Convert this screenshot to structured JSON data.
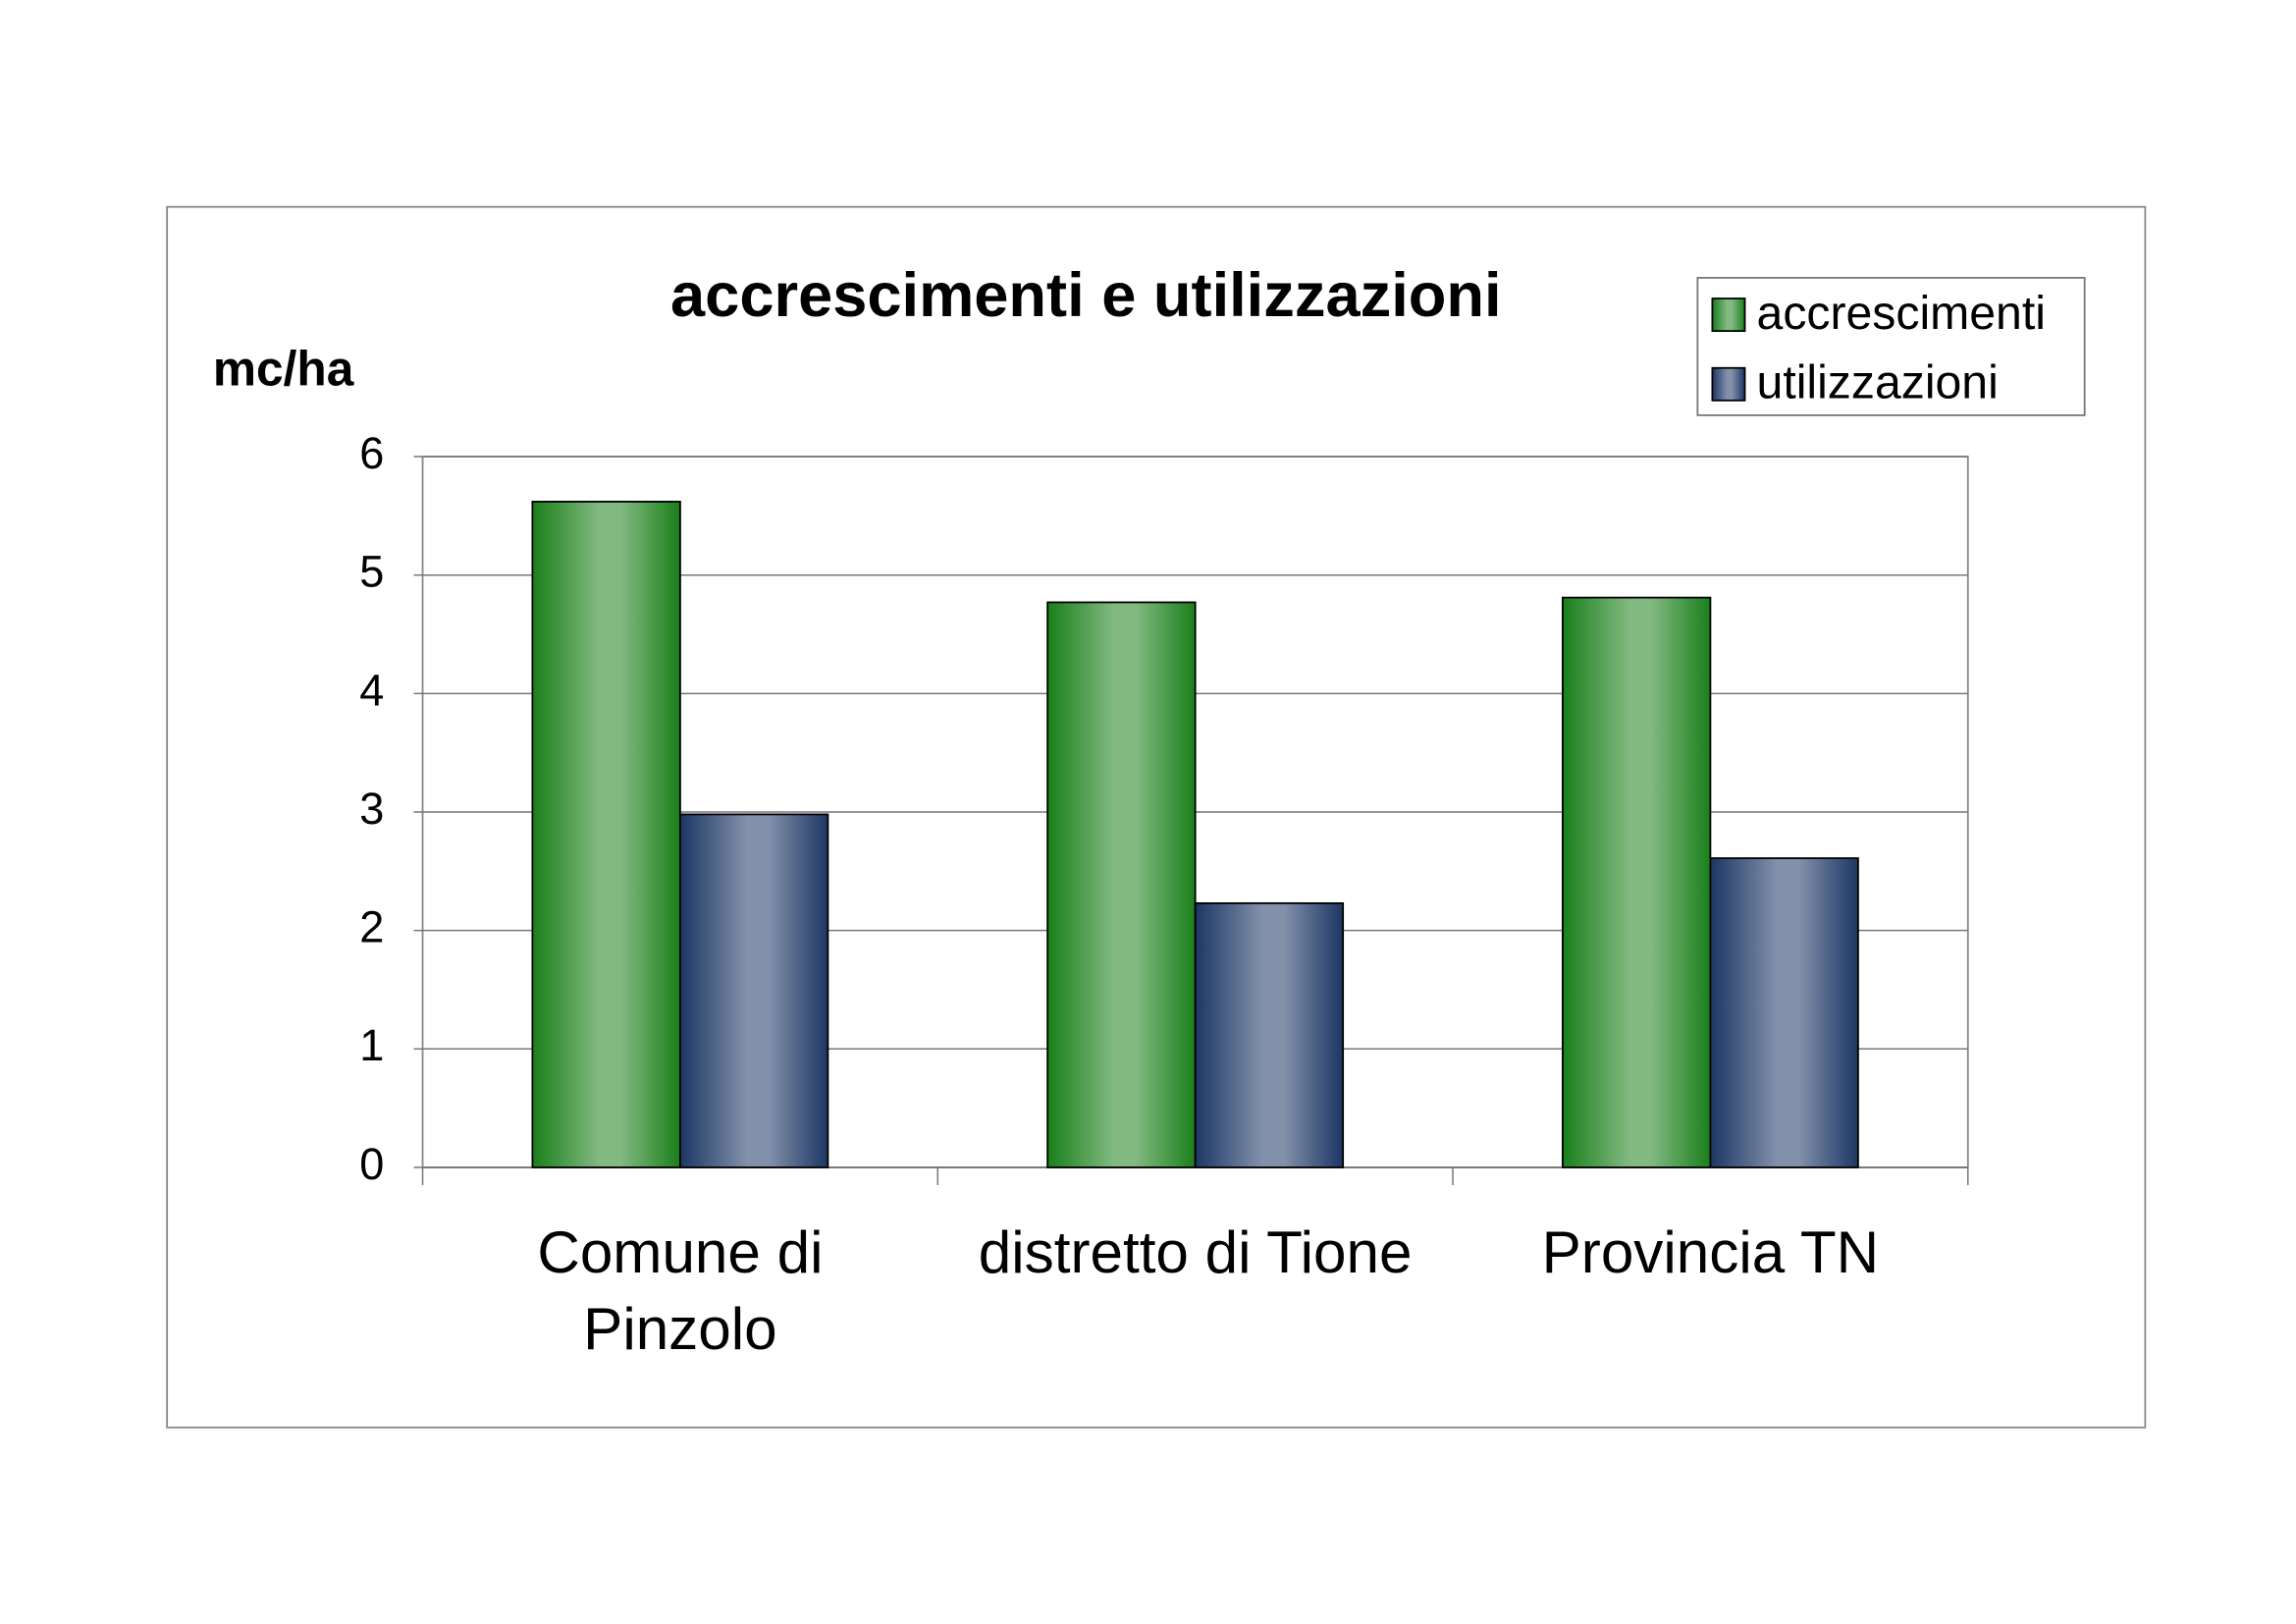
{
  "chart_data": {
    "type": "bar",
    "title": "accrescimenti e utilizzazioni",
    "y_label": "mc/ha",
    "categories": [
      "Comune di\nPinzolo",
      "distretto di Tione",
      "Provincia TN"
    ],
    "series": [
      {
        "name": "accrescimenti",
        "color": "#1a7f1a",
        "values": [
          5.62,
          4.77,
          4.81
        ]
      },
      {
        "name": "utilizzazioni",
        "color": "#1c3664",
        "values": [
          2.98,
          2.23,
          2.61
        ]
      }
    ],
    "ylim": [
      0,
      6
    ],
    "yticks": [
      0,
      1,
      2,
      3,
      4,
      5,
      6
    ],
    "grid": true,
    "legend": "top-right"
  }
}
